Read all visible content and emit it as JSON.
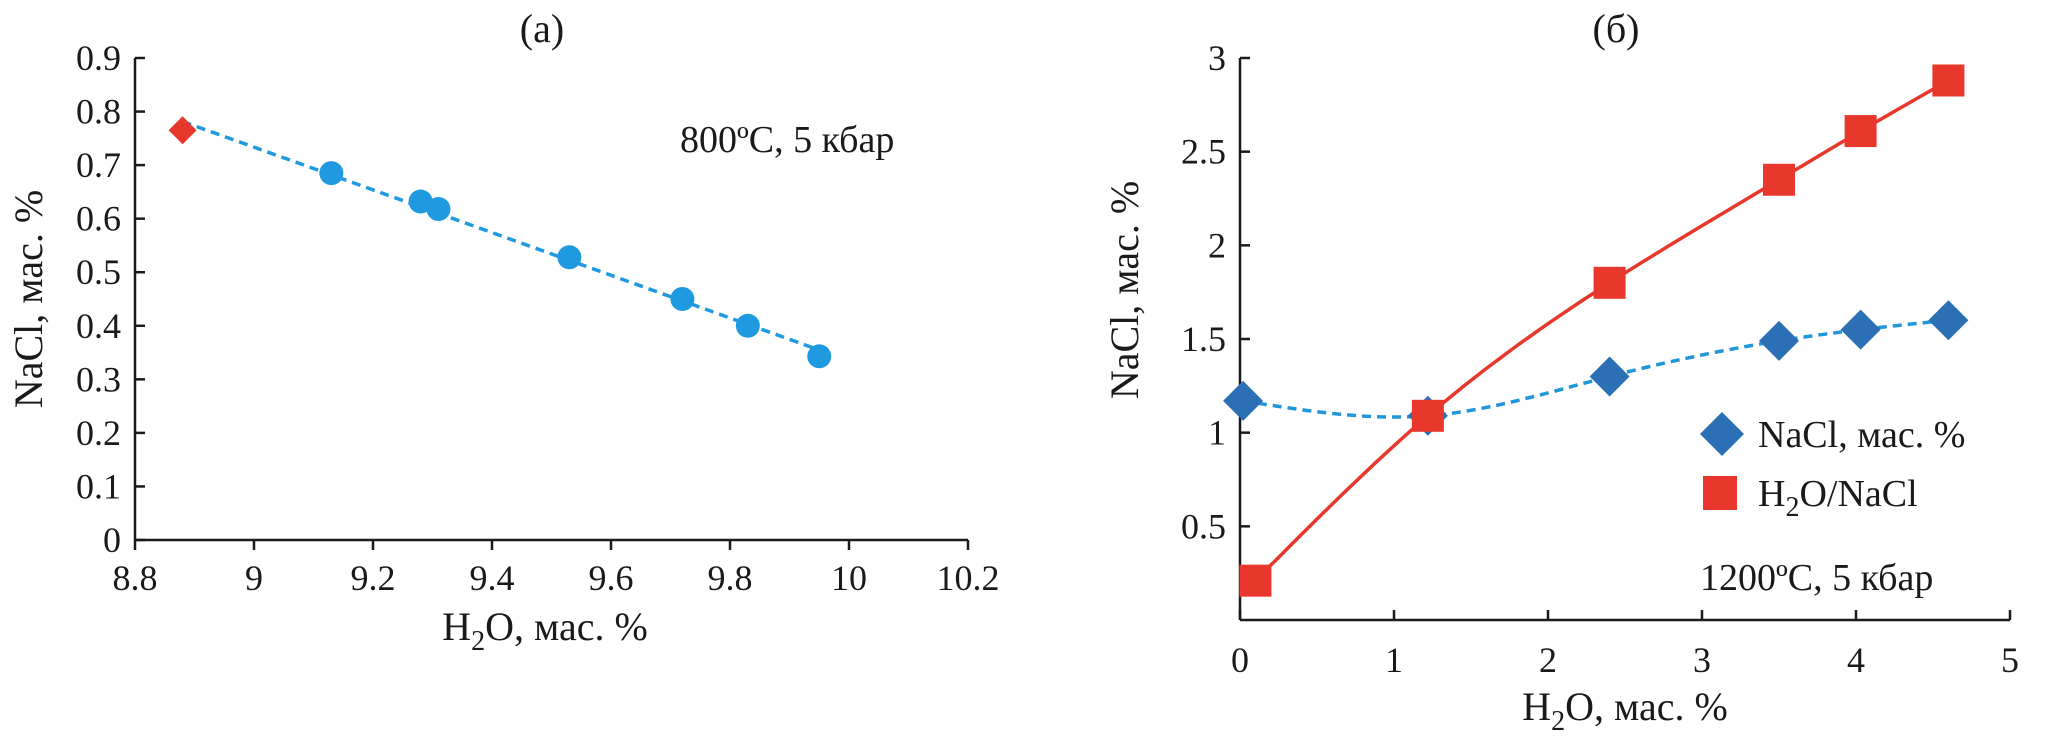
{
  "chart_data": [
    {
      "type": "scatter",
      "panel_title": "(а)",
      "annotation": "800ºC, 5 кбар",
      "xlabel_main": "H",
      "xlabel_sub": "2",
      "xlabel_tail": "O, мас. %",
      "ylabel": "NaCl, мас. %",
      "xlim": [
        8.8,
        10.2
      ],
      "ylim": [
        0,
        0.9
      ],
      "xticks": [
        "8.8",
        "9",
        "9.2",
        "9.4",
        "9.6",
        "9.8",
        "10",
        "10.2"
      ],
      "yticks": [
        "0",
        "0.1",
        "0.2",
        "0.3",
        "0.4",
        "0.5",
        "0.6",
        "0.7",
        "0.8",
        "0.9"
      ],
      "grid": false,
      "colors": {
        "points": "#1f9ae0",
        "initial": "#e8372c",
        "trend": "#1f9ae0"
      },
      "series": [
        {
          "marker": "diamond",
          "x": [
            8.88
          ],
          "y": [
            0.765
          ]
        },
        {
          "marker": "circle",
          "x": [
            9.13,
            9.28,
            9.31,
            9.53,
            9.72,
            9.83,
            9.95
          ],
          "y": [
            0.685,
            0.632,
            0.618,
            0.528,
            0.45,
            0.4,
            0.343
          ]
        }
      ]
    },
    {
      "type": "line",
      "panel_title": "(б)",
      "annotation": "1200ºC, 5 кбар",
      "xlabel_main": "H",
      "xlabel_sub": "2",
      "xlabel_tail": "O, мас. %",
      "ylabel": "NaCl, мас. %",
      "xlim": [
        0,
        5
      ],
      "ylim": [
        0,
        3
      ],
      "xticks": [
        "0",
        "1",
        "2",
        "3",
        "4",
        "5"
      ],
      "yticks": [
        "0.5",
        "1",
        "1.5",
        "2",
        "2.5",
        "3"
      ],
      "grid": false,
      "legend_position": "right",
      "colors": {
        "nacl": "#2b6fb5",
        "nacl_line": "#2196d9",
        "h2o": "#e8372c"
      },
      "series": [
        {
          "name": "NaCl, мас. %",
          "marker": "diamond",
          "line": "dashed",
          "x": [
            0.02,
            1.22,
            2.4,
            3.5,
            4.03,
            4.6
          ],
          "y": [
            1.17,
            1.09,
            1.3,
            1.49,
            1.55,
            1.6
          ]
        },
        {
          "name_main": "H",
          "name_sub": "2",
          "name_tail": "O/NaCl",
          "marker": "square",
          "line": "solid",
          "x": [
            0.1,
            1.22,
            2.4,
            3.5,
            4.03,
            4.6
          ],
          "y": [
            0.21,
            1.09,
            1.8,
            2.35,
            2.61,
            2.88
          ]
        }
      ]
    }
  ]
}
